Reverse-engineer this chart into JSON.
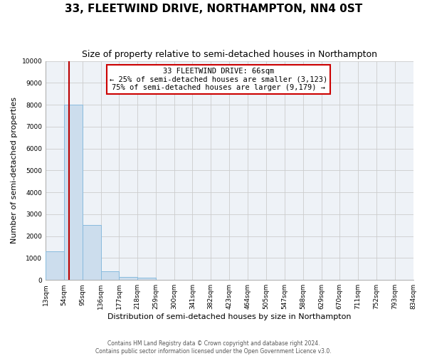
{
  "title": "33, FLEETWIND DRIVE, NORTHAMPTON, NN4 0ST",
  "subtitle": "Size of property relative to semi-detached houses in Northampton",
  "xlabel": "Distribution of semi-detached houses by size in Northampton",
  "ylabel": "Number of semi-detached properties",
  "bin_edges": [
    13,
    54,
    95,
    136,
    177,
    218,
    259,
    300,
    341,
    382,
    423,
    464,
    505,
    547,
    588,
    629,
    670,
    711,
    752,
    793,
    834
  ],
  "bar_heights": [
    1300,
    8000,
    2500,
    400,
    150,
    100,
    0,
    0,
    0,
    0,
    0,
    0,
    0,
    0,
    0,
    0,
    0,
    0,
    0,
    0
  ],
  "bar_color": "#ccdded",
  "bar_edge_color": "#88bbdd",
  "property_line_x": 66,
  "property_line_color": "#bb0000",
  "ylim": [
    0,
    10000
  ],
  "yticks": [
    0,
    1000,
    2000,
    3000,
    4000,
    5000,
    6000,
    7000,
    8000,
    9000,
    10000
  ],
  "annotation_title": "33 FLEETWIND DRIVE: 66sqm",
  "annotation_line1": "← 25% of semi-detached houses are smaller (3,123)",
  "annotation_line2": "75% of semi-detached houses are larger (9,179) →",
  "annotation_box_color": "#ffffff",
  "annotation_box_edge_color": "#cc0000",
  "footer_line1": "Contains HM Land Registry data © Crown copyright and database right 2024.",
  "footer_line2": "Contains public sector information licensed under the Open Government Licence v3.0.",
  "background_color": "#ffffff",
  "plot_bg_color": "#eef2f7",
  "grid_color": "#cccccc",
  "title_fontsize": 11,
  "subtitle_fontsize": 9,
  "tick_fontsize": 6.5,
  "ylabel_fontsize": 8,
  "xlabel_fontsize": 8
}
